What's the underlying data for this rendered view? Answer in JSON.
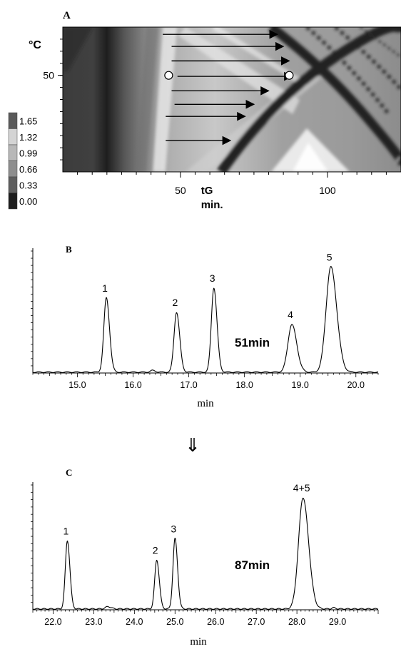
{
  "panels": {
    "a_label": "A",
    "b_label": "B",
    "c_label": "C",
    "arrow_glyph": "⇓"
  },
  "chart_data": [
    {
      "type": "heatmap",
      "panel": "A",
      "ylabel": "°C",
      "y_ticks": [
        {
          "v": 50,
          "label": "50"
        }
      ],
      "ylim": [
        30,
        60
      ],
      "xlabel": "tG",
      "xunit": "min.",
      "xlim": [
        10,
        125
      ],
      "x_ticks": [
        {
          "v": 50,
          "label": "50"
        },
        {
          "v": 100,
          "label": "100"
        }
      ],
      "colorbar": {
        "labels": [
          "1.65",
          "1.32",
          "0.99",
          "0.66",
          "0.33",
          "0.00"
        ],
        "colors": [
          "#5a5a5a",
          "#d4d4d4",
          "#b8b8b8",
          "#8e8e8e",
          "#5e5e5e",
          "#1c1c1c"
        ]
      },
      "markers": [
        {
          "x": 46,
          "y": 50
        },
        {
          "x": 87,
          "y": 50
        }
      ],
      "arrows": [
        {
          "x1": 44,
          "x2": 83,
          "y": 58.5
        },
        {
          "x1": 47,
          "x2": 85,
          "y": 56
        },
        {
          "x1": 47,
          "x2": 87,
          "y": 53
        },
        {
          "x1": 49,
          "x2": 88,
          "y": 49.8
        },
        {
          "x1": 47,
          "x2": 80,
          "y": 46.8
        },
        {
          "x1": 48,
          "x2": 75,
          "y": 44
        },
        {
          "x1": 45,
          "x2": 72,
          "y": 41.5
        },
        {
          "x1": 45,
          "x2": 67,
          "y": 36.5
        }
      ]
    },
    {
      "type": "line",
      "panel": "B",
      "xlabel": "min",
      "xlim": [
        14.2,
        20.4
      ],
      "ylim": [
        0,
        1.1
      ],
      "x_ticks": [
        "15.0",
        "16.0",
        "17.0",
        "18.0",
        "19.0",
        "20.0"
      ],
      "annotation": "51min",
      "peaks": [
        {
          "label": "1",
          "t": 15.52,
          "h": 0.67,
          "w": 0.045
        },
        {
          "label": "2",
          "t": 16.78,
          "h": 0.54,
          "w": 0.045
        },
        {
          "label": "3",
          "t": 17.45,
          "h": 0.76,
          "w": 0.045
        },
        {
          "label": "4",
          "t": 18.85,
          "h": 0.43,
          "w": 0.07
        },
        {
          "label": "5",
          "t": 19.55,
          "h": 0.95,
          "w": 0.085
        }
      ],
      "minor_peaks": [
        {
          "t": 16.35,
          "h": 0.015,
          "w": 0.04
        }
      ]
    },
    {
      "type": "line",
      "panel": "C",
      "xlabel": "min",
      "xlim": [
        21.5,
        30.0
      ],
      "ylim": [
        0,
        1.1
      ],
      "x_ticks": [
        "22.0",
        "23.0",
        "24.0",
        "25.0",
        "26.0",
        "27.0",
        "28.0",
        "29.0"
      ],
      "annotation": "87min",
      "peaks": [
        {
          "label": "1",
          "t": 22.35,
          "h": 0.6,
          "w": 0.05
        },
        {
          "label": "2",
          "t": 24.55,
          "h": 0.43,
          "w": 0.05
        },
        {
          "label": "3",
          "t": 25.0,
          "h": 0.62,
          "w": 0.05
        },
        {
          "label": "4+5",
          "t": 28.15,
          "h": 0.98,
          "w": 0.11
        }
      ],
      "minor_peaks": [
        {
          "t": 23.35,
          "h": 0.02,
          "w": 0.06
        },
        {
          "t": 28.9,
          "h": 0.01,
          "w": 0.04
        }
      ]
    }
  ]
}
